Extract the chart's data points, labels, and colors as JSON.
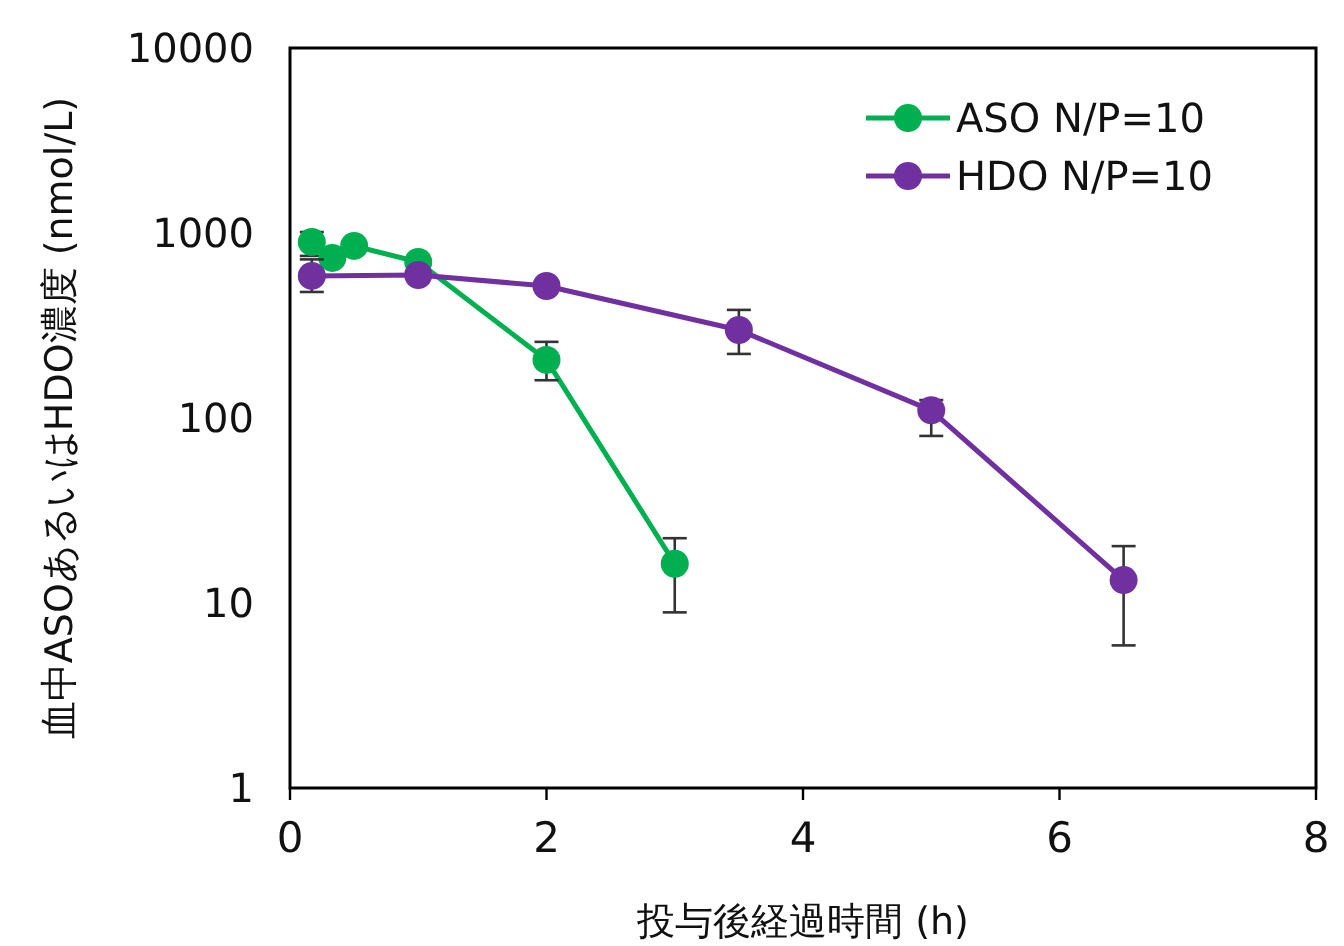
{
  "chart_data": {
    "type": "line",
    "xlabel": "投与後経過時間 (h)",
    "ylabel": "血中ASOあるいはHDO濃度 (nmol/L)",
    "log": "y",
    "xlim": [
      0,
      8
    ],
    "xticks": [
      0,
      2,
      4,
      6,
      8
    ],
    "ylim": [
      1,
      10000
    ],
    "yticks": [
      1,
      10,
      100,
      1000,
      10000
    ],
    "grid": false,
    "legend": "top right",
    "marker": "circle",
    "line_style": "solid",
    "series": [
      {
        "name": "ASO N/P=10",
        "color": "#00b050",
        "x": [
          0.17,
          0.33,
          0.5,
          1,
          2,
          3
        ],
        "values": [
          893,
          733,
          851,
          697,
          206,
          16.3
        ],
        "errors": [
          [
            752,
            1012
          ],
          null,
          null,
          null,
          [
            160,
            258
          ],
          [
            8.9,
            22.4
          ]
        ]
      },
      {
        "name": "HDO N/P=10",
        "color": "#7030a0",
        "x": [
          0.17,
          1,
          2,
          3.5,
          5,
          6.5
        ],
        "values": [
          586,
          593,
          517,
          299,
          110,
          13.3
        ],
        "errors": [
          [
            480,
            720
          ],
          null,
          null,
          [
            222,
            384
          ],
          [
            80,
            125
          ],
          [
            5.9,
            20.3
          ]
        ]
      }
    ]
  }
}
